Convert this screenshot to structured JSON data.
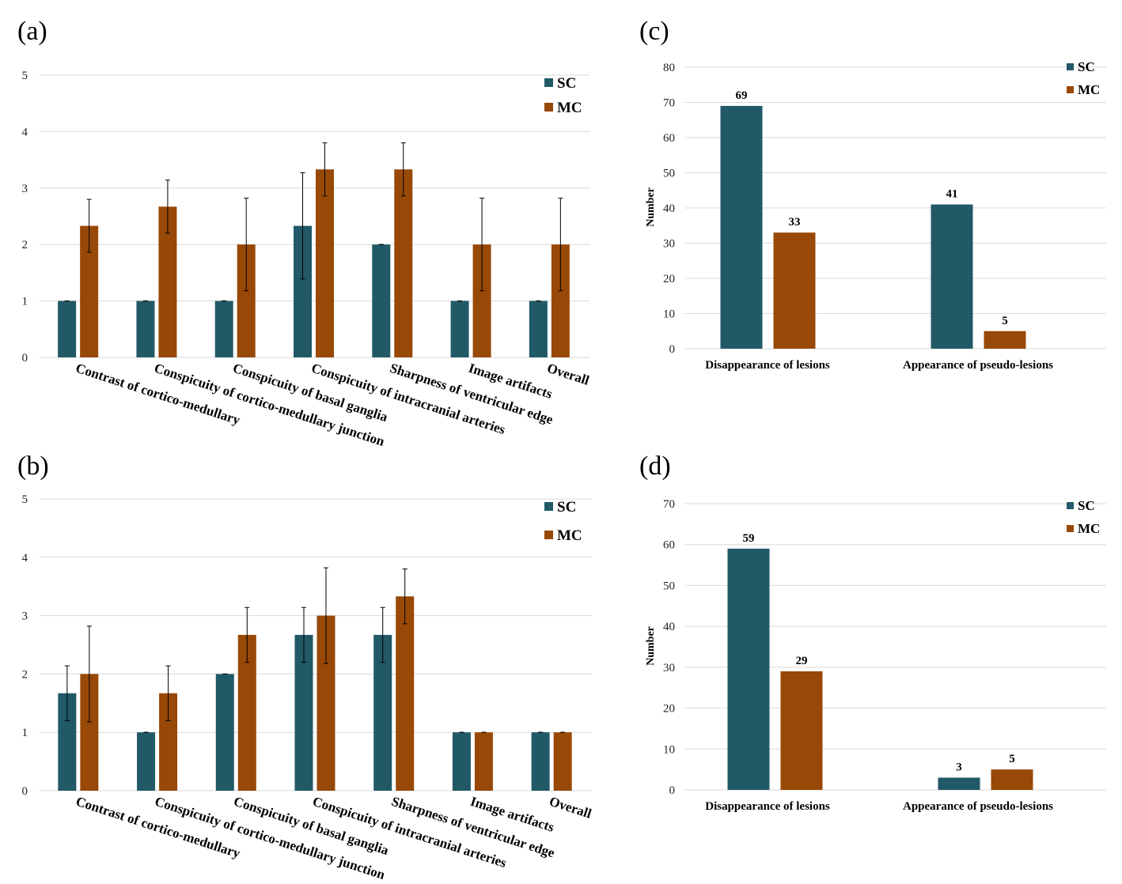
{
  "colors": {
    "SC": "#215967",
    "MC": "#984807"
  },
  "chart_data": [
    {
      "id": "a",
      "panel_label": "(a)",
      "type": "bar",
      "categories": [
        "Contrast of cortico-medullary",
        "Conspicuity of cortico-medullary junction",
        "Conspicuity of basal ganglia",
        "Conspicuity of intracranial arteries",
        "Sharpness of ventricular edge",
        "Image artifacts",
        "Overall"
      ],
      "series": [
        {
          "name": "SC",
          "values": [
            1,
            1,
            1,
            2.33,
            2,
            1,
            1
          ],
          "errors": [
            0,
            0,
            0,
            0.94,
            0,
            0,
            0
          ]
        },
        {
          "name": "MC",
          "values": [
            2.33,
            2.67,
            2,
            3.33,
            3.33,
            2,
            2
          ],
          "errors": [
            0.47,
            0.47,
            0.82,
            0.47,
            0.47,
            0.82,
            0.82
          ]
        }
      ],
      "ylim": [
        0,
        5
      ],
      "yticks": [
        "0",
        "1",
        "2",
        "3",
        "4",
        "5"
      ],
      "legend": [
        "SC",
        "MC"
      ],
      "legend_position": "top-right"
    },
    {
      "id": "b",
      "panel_label": "(b)",
      "type": "bar",
      "categories": [
        "Contrast of cortico-medullary",
        "Conspicuity of cortico-medullary junction",
        "Conspicuity of basal ganglia",
        "Conspicuity of intracranial arteries",
        "Sharpness of ventricular edge",
        "Image artifacts",
        "Overall"
      ],
      "series": [
        {
          "name": "SC",
          "values": [
            1.67,
            1,
            2,
            2.67,
            2.67,
            1,
            1
          ],
          "errors": [
            0.47,
            0,
            0,
            0.47,
            0.47,
            0,
            0
          ]
        },
        {
          "name": "MC",
          "values": [
            2,
            1.67,
            2.67,
            3,
            3.33,
            1,
            1
          ],
          "errors": [
            0.82,
            0.47,
            0.47,
            0.82,
            0.47,
            0,
            0
          ]
        }
      ],
      "ylim": [
        0,
        5
      ],
      "yticks": [
        "0",
        "1",
        "2",
        "3",
        "4",
        "5"
      ],
      "legend": [
        "SC",
        "MC"
      ],
      "legend_position": "top-right"
    },
    {
      "id": "c",
      "panel_label": "(c)",
      "type": "bar",
      "categories": [
        "Disappearance of lesions",
        "Appearance of pseudo-lesions"
      ],
      "series": [
        {
          "name": "SC",
          "values": [
            69,
            41
          ],
          "labels": [
            "69",
            "41"
          ]
        },
        {
          "name": "MC",
          "values": [
            33,
            5
          ],
          "labels": [
            "33",
            "5"
          ]
        }
      ],
      "ylabel": "Number",
      "ylim": [
        0,
        80
      ],
      "yticks": [
        "0",
        "10",
        "20",
        "30",
        "40",
        "50",
        "60",
        "70",
        "80"
      ],
      "legend": [
        "SC",
        "MC"
      ],
      "legend_position": "top-right"
    },
    {
      "id": "d",
      "panel_label": "(d)",
      "type": "bar",
      "categories": [
        "Disappearance of lesions",
        "Appearance of pseudo-lesions"
      ],
      "series": [
        {
          "name": "SC",
          "values": [
            59,
            3
          ],
          "labels": [
            "59",
            "3"
          ]
        },
        {
          "name": "MC",
          "values": [
            29,
            5
          ],
          "labels": [
            "29",
            "5"
          ]
        }
      ],
      "ylabel": "Number",
      "ylim": [
        0,
        70
      ],
      "yticks": [
        "0",
        "10",
        "20",
        "30",
        "40",
        "50",
        "60",
        "70"
      ],
      "legend": [
        "SC",
        "MC"
      ],
      "legend_position": "top-right"
    }
  ]
}
